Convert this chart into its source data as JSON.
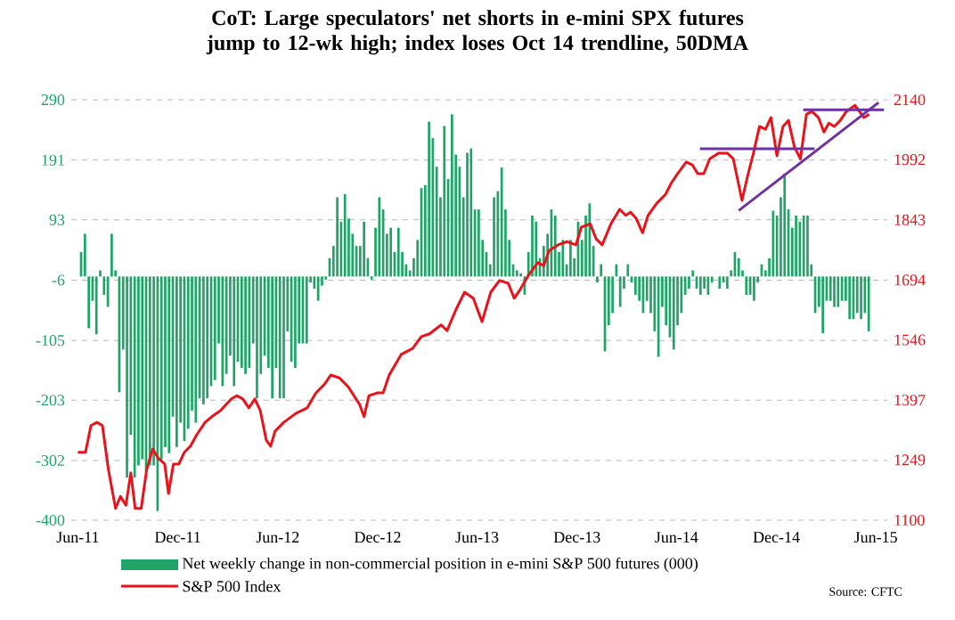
{
  "chart_data": {
    "type": "bar",
    "title": "CoT: Large speculators' net shorts in e-mini SPX futures jump to 12-wk high; index loses Oct 14 trendline, 50DMA",
    "x": [
      "2011-06-07",
      "2011-06-14",
      "2011-06-21",
      "2011-06-28",
      "2011-07-05",
      "2011-07-12",
      "2011-07-19",
      "2011-07-26",
      "2011-08-02",
      "2011-08-09",
      "2011-08-16",
      "2011-08-23",
      "2011-08-30",
      "2011-09-06",
      "2011-09-13",
      "2011-09-20",
      "2011-09-27",
      "2011-10-04",
      "2011-10-11",
      "2011-10-18",
      "2011-10-25",
      "2011-11-01",
      "2011-11-08",
      "2011-11-15",
      "2011-11-22",
      "2011-11-29",
      "2011-12-06",
      "2011-12-13",
      "2011-12-20",
      "2011-12-27",
      "2012-01-03",
      "2012-01-10",
      "2012-01-17",
      "2012-01-24",
      "2012-01-31",
      "2012-02-07",
      "2012-02-14",
      "2012-02-21",
      "2012-02-28",
      "2012-03-06",
      "2012-03-13",
      "2012-03-20",
      "2012-03-27",
      "2012-04-03",
      "2012-04-10",
      "2012-04-17",
      "2012-04-24",
      "2012-05-01",
      "2012-05-08",
      "2012-05-15",
      "2012-05-22",
      "2012-05-29",
      "2012-06-05",
      "2012-06-12",
      "2012-06-19",
      "2012-06-26",
      "2012-07-03",
      "2012-07-10",
      "2012-07-17",
      "2012-07-24",
      "2012-07-31",
      "2012-08-07",
      "2012-08-14",
      "2012-08-21",
      "2012-08-28",
      "2012-09-04",
      "2012-09-11",
      "2012-09-18",
      "2012-09-25",
      "2012-10-02",
      "2012-10-09",
      "2012-10-16",
      "2012-10-23",
      "2012-10-30",
      "2012-11-06",
      "2012-11-13",
      "2012-11-20",
      "2012-11-27",
      "2012-12-04",
      "2012-12-11",
      "2012-12-18",
      "2012-12-25",
      "2013-01-01",
      "2013-01-08",
      "2013-01-15",
      "2013-01-22",
      "2013-01-29",
      "2013-02-05",
      "2013-02-12",
      "2013-02-19",
      "2013-02-26",
      "2013-03-05",
      "2013-03-12",
      "2013-03-19",
      "2013-03-26",
      "2013-04-02",
      "2013-04-09",
      "2013-04-16",
      "2013-04-23",
      "2013-04-30",
      "2013-05-07",
      "2013-05-14",
      "2013-05-21",
      "2013-05-28",
      "2013-06-04",
      "2013-06-11",
      "2013-06-18",
      "2013-06-25",
      "2013-07-02",
      "2013-07-09",
      "2013-07-16",
      "2013-07-23",
      "2013-07-30",
      "2013-08-06",
      "2013-08-13",
      "2013-08-20",
      "2013-08-27",
      "2013-09-03",
      "2013-09-10",
      "2013-09-17",
      "2013-09-24",
      "2013-10-01",
      "2013-10-08",
      "2013-10-15",
      "2013-10-22",
      "2013-10-29",
      "2013-11-05",
      "2013-11-12",
      "2013-11-19",
      "2013-11-26",
      "2013-12-03",
      "2013-12-10",
      "2013-12-17",
      "2013-12-24",
      "2013-12-31",
      "2014-01-07",
      "2014-01-14",
      "2014-01-21",
      "2014-01-28",
      "2014-02-04",
      "2014-02-11",
      "2014-02-18",
      "2014-02-25",
      "2014-03-04",
      "2014-03-11",
      "2014-03-18",
      "2014-03-25",
      "2014-04-01",
      "2014-04-08",
      "2014-04-15",
      "2014-04-22",
      "2014-04-29",
      "2014-05-06",
      "2014-05-13",
      "2014-05-20",
      "2014-05-27",
      "2014-06-03",
      "2014-06-10",
      "2014-06-17",
      "2014-06-24",
      "2014-07-01",
      "2014-07-08",
      "2014-07-15",
      "2014-07-22",
      "2014-07-29",
      "2014-08-05",
      "2014-08-12",
      "2014-08-19",
      "2014-08-26",
      "2014-09-02",
      "2014-09-09",
      "2014-09-16",
      "2014-09-23",
      "2014-09-30",
      "2014-10-07",
      "2014-10-14",
      "2014-10-21",
      "2014-10-28",
      "2014-11-04",
      "2014-11-11",
      "2014-11-18",
      "2014-11-25",
      "2014-12-02",
      "2014-12-09",
      "2014-12-16",
      "2014-12-23",
      "2014-12-30",
      "2015-01-06",
      "2015-01-13",
      "2015-01-20",
      "2015-01-27",
      "2015-02-03",
      "2015-02-10",
      "2015-02-17",
      "2015-02-24",
      "2015-03-03",
      "2015-03-10",
      "2015-03-17",
      "2015-03-24",
      "2015-03-31",
      "2015-04-07",
      "2015-04-14",
      "2015-04-21",
      "2015-04-28",
      "2015-05-05",
      "2015-05-12",
      "2015-05-19"
    ],
    "series": [
      {
        "name": "Net weekly change in non-commercial position in e-mini S&P 500 futures (000)",
        "color": "#1fa468",
        "values": [
          40,
          70,
          -85,
          -40,
          -95,
          10,
          -30,
          -50,
          70,
          10,
          -190,
          -120,
          -330,
          -260,
          -330,
          -310,
          -300,
          -320,
          -310,
          -310,
          -385,
          -300,
          -280,
          -290,
          -230,
          -280,
          -240,
          -270,
          -250,
          -220,
          -240,
          -200,
          -210,
          -200,
          -180,
          -170,
          -110,
          -180,
          -160,
          -130,
          -180,
          -140,
          -150,
          -160,
          -150,
          -110,
          -200,
          -160,
          -130,
          -150,
          -200,
          -150,
          -200,
          -200,
          -90,
          -140,
          -150,
          -110,
          -110,
          -110,
          -10,
          -20,
          -40,
          -15,
          -5,
          30,
          50,
          130,
          90,
          135,
          95,
          70,
          50,
          50,
          90,
          30,
          -5,
          80,
          130,
          110,
          70,
          80,
          40,
          80,
          40,
          20,
          10,
          30,
          60,
          145,
          150,
          254,
          227,
          180,
          130,
          247,
          160,
          266,
          200,
          180,
          130,
          203,
          210,
          110,
          110,
          60,
          40,
          20,
          130,
          140,
          179,
          110,
          60,
          20,
          10,
          5,
          -30,
          40,
          100,
          90,
          30,
          50,
          70,
          110,
          100,
          40,
          60,
          20,
          60,
          30,
          90,
          60,
          100,
          120,
          50,
          -10,
          20,
          -123,
          -80,
          -60,
          20,
          -50,
          -20,
          20,
          -10,
          -30,
          -40,
          -60,
          -40,
          -60,
          -90,
          -132,
          -50,
          -80,
          -100,
          -120,
          -80,
          -60,
          -30,
          -20,
          10,
          -20,
          -30,
          -20,
          -30,
          -10,
          0,
          -20,
          -10,
          -20,
          10,
          40,
          30,
          10,
          -30,
          -30,
          -40,
          -10,
          20,
          10,
          30,
          108,
          100,
          130,
          169,
          110,
          80,
          100,
          90,
          100,
          100,
          20,
          -60,
          -50,
          -93,
          -40,
          -40,
          -50,
          -50,
          -40,
          -40,
          -70,
          -70,
          -60,
          -70,
          -60,
          -90
        ]
      },
      {
        "name": "S&P 500 Index",
        "color": "#e8131b",
        "type": "line",
        "axis": "y2",
        "x": [
          "2011-06-01",
          "2011-06-15",
          "2011-06-25",
          "2011-07-06",
          "2011-07-16",
          "2011-07-27",
          "2011-08-09",
          "2011-08-18",
          "2011-08-28",
          "2011-09-06",
          "2011-09-14",
          "2011-09-25",
          "2011-10-05",
          "2011-10-16",
          "2011-10-26",
          "2011-11-07",
          "2011-11-14",
          "2011-11-23",
          "2011-12-03",
          "2011-12-13",
          "2011-12-24",
          "2012-01-05",
          "2012-01-20",
          "2012-02-01",
          "2012-02-17",
          "2012-03-08",
          "2012-03-18",
          "2012-03-29",
          "2012-04-09",
          "2012-04-20",
          "2012-04-30",
          "2012-05-11",
          "2012-05-19",
          "2012-05-27",
          "2012-06-12",
          "2012-07-04",
          "2012-07-25",
          "2012-08-10",
          "2012-08-26",
          "2012-09-06",
          "2012-09-22",
          "2012-10-08",
          "2012-10-29",
          "2012-11-06",
          "2012-11-15",
          "2012-12-01",
          "2012-12-11",
          "2012-12-22",
          "2013-01-13",
          "2013-02-03",
          "2013-02-19",
          "2013-03-06",
          "2013-03-27",
          "2013-04-07",
          "2013-04-23",
          "2013-05-09",
          "2013-05-25",
          "2013-06-10",
          "2013-06-26",
          "2013-07-12",
          "2013-07-28",
          "2013-08-08",
          "2013-08-19",
          "2013-09-04",
          "2013-09-20",
          "2013-10-01",
          "2013-10-11",
          "2013-10-27",
          "2013-11-13",
          "2013-11-29",
          "2013-12-09",
          "2013-12-25",
          "2014-01-05",
          "2014-01-16",
          "2014-02-01",
          "2014-02-17",
          "2014-02-28",
          "2014-03-09",
          "2014-03-19",
          "2014-03-31",
          "2014-04-10",
          "2014-04-26",
          "2014-05-12",
          "2014-05-23",
          "2014-06-03",
          "2014-06-19",
          "2014-06-30",
          "2014-07-10",
          "2014-07-21",
          "2014-08-01",
          "2014-08-17",
          "2014-09-02",
          "2014-09-13",
          "2014-09-29",
          "2014-10-09",
          "2014-10-20",
          "2014-10-31",
          "2014-11-11",
          "2014-11-21",
          "2014-12-02",
          "2014-12-13",
          "2014-12-23",
          "2015-01-03",
          "2015-01-14",
          "2015-01-25",
          "2015-02-04",
          "2015-02-16",
          "2015-02-26",
          "2015-03-07",
          "2015-03-17",
          "2015-03-28",
          "2015-04-08",
          "2015-04-24",
          "2015-05-10",
          "2015-05-20"
        ],
        "values": [
          1268,
          1268,
          1334,
          1342,
          1334,
          1225,
          1129,
          1159,
          1137,
          1217,
          1129,
          1129,
          1225,
          1276,
          1254,
          1239,
          1166,
          1239,
          1239,
          1268,
          1283,
          1312,
          1342,
          1356,
          1371,
          1400,
          1408,
          1400,
          1378,
          1400,
          1371,
          1298,
          1283,
          1320,
          1342,
          1364,
          1378,
          1415,
          1437,
          1459,
          1452,
          1430,
          1386,
          1356,
          1408,
          1415,
          1415,
          1459,
          1510,
          1525,
          1554,
          1561,
          1583,
          1569,
          1620,
          1664,
          1649,
          1591,
          1664,
          1693,
          1686,
          1649,
          1671,
          1708,
          1737,
          1730,
          1767,
          1781,
          1789,
          1781,
          1825,
          1833,
          1796,
          1781,
          1833,
          1869,
          1854,
          1862,
          1847,
          1811,
          1854,
          1884,
          1906,
          1935,
          1957,
          1986,
          1979,
          1957,
          1957,
          1994,
          2008,
          2008,
          1994,
          1891,
          1950,
          2008,
          2074,
          2067,
          2096,
          2001,
          2074,
          2089,
          2023,
          1994,
          2104,
          2111,
          2096,
          2060,
          2082,
          2074,
          2089,
          2111,
          2126,
          2096,
          2104
        ]
      },
      {
        "color": "#7030a0",
        "type": "line",
        "axis": "y2",
        "x": [
          "2014-07-14",
          "2015-02-09"
        ],
        "values": [
          2019,
          2019
        ]
      },
      {
        "color": "#7030a0",
        "type": "line",
        "axis": "y2",
        "x": [
          "2014-09-23",
          "2015-06-06"
        ],
        "values": [
          1866,
          2133
        ]
      },
      {
        "color": "#7030a0",
        "type": "line",
        "axis": "y2",
        "x": [
          "2015-01-19",
          "2015-06-16"
        ],
        "values": [
          2115,
          2115
        ]
      }
    ],
    "xlim": [
      "2011-05-20",
      "2015-06-22"
    ],
    "xticks": [
      {
        "value": "2011-06-01",
        "label": "Jun-11"
      },
      {
        "value": "2011-12-01",
        "label": "Dec-11"
      },
      {
        "value": "2012-06-01",
        "label": "Jun-12"
      },
      {
        "value": "2012-12-01",
        "label": "Dec-12"
      },
      {
        "value": "2013-06-01",
        "label": "Jun-13"
      },
      {
        "value": "2013-12-01",
        "label": "Dec-13"
      },
      {
        "value": "2014-06-01",
        "label": "Jun-14"
      },
      {
        "value": "2014-12-01",
        "label": "Dec-14"
      },
      {
        "value": "2015-06-01",
        "label": "Jun-15"
      }
    ],
    "ylim": [
      -400,
      290
    ],
    "yticks": [
      -400,
      -302,
      -203,
      -105,
      -6,
      93,
      191,
      290
    ],
    "y2lim": [
      1100,
      2140
    ],
    "y2ticks": [
      1100,
      1249,
      1397,
      1546,
      1694,
      1843,
      1992,
      2140
    ],
    "grid": "y",
    "legend": "bottom",
    "line_style": "solid",
    "marker": "none",
    "annotations": [
      "Source: CFTC"
    ]
  }
}
